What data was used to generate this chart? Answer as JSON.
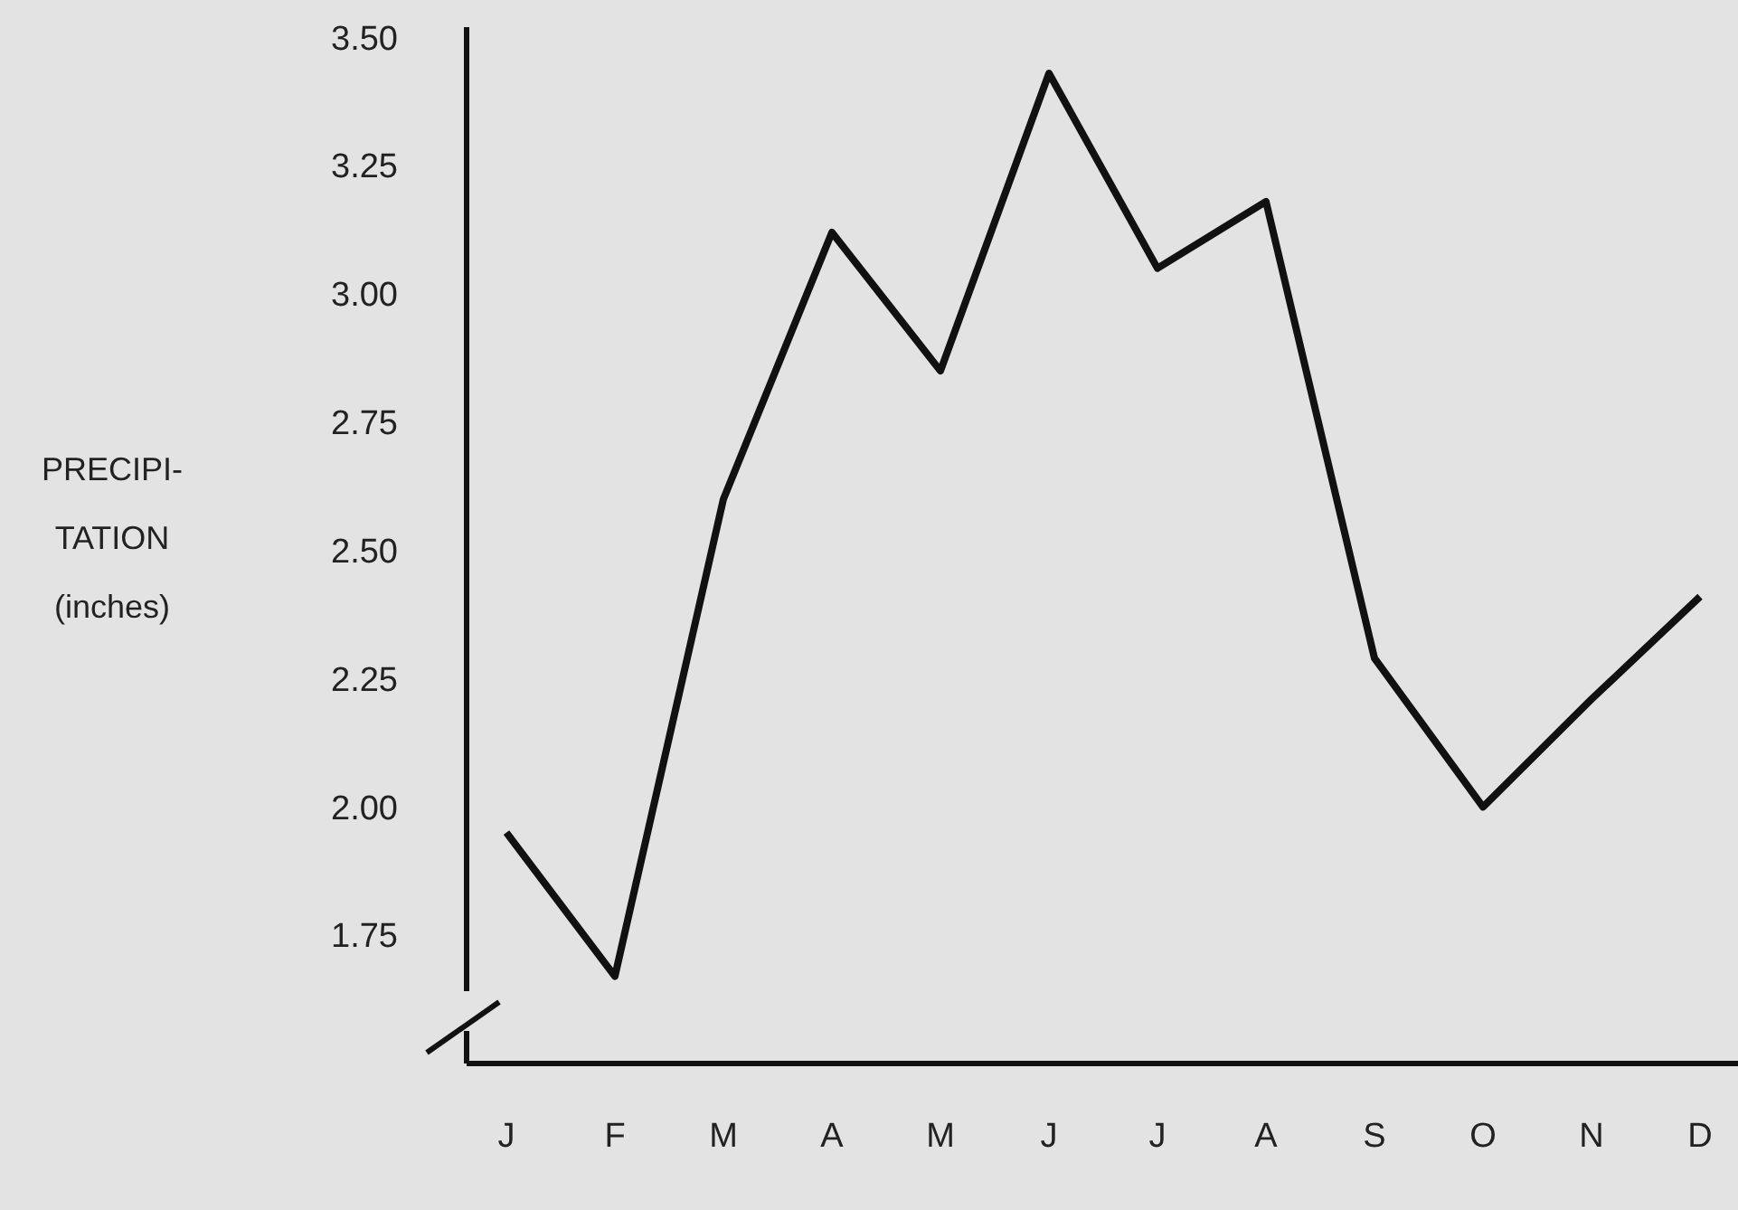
{
  "chart_data": {
    "type": "line",
    "ylabel": "PRECIPI-\nTATION\n(inches)",
    "categories": [
      "J",
      "F",
      "M",
      "A",
      "M",
      "J",
      "J",
      "A",
      "S",
      "O",
      "N",
      "D"
    ],
    "values": [
      1.95,
      1.67,
      2.6,
      3.12,
      2.85,
      3.43,
      3.05,
      3.18,
      2.29,
      2.0,
      2.21,
      2.41
    ],
    "color": "#111111",
    "ylim": [
      1.5,
      3.52
    ],
    "yticks": [
      {
        "value": 1.75,
        "label": "1.75"
      },
      {
        "value": 2,
        "label": "2.00"
      },
      {
        "value": 2.25,
        "label": "2.25"
      },
      {
        "value": 2.5,
        "label": "2.50"
      },
      {
        "value": 2.75,
        "label": "2.75"
      },
      {
        "value": 3,
        "label": "3.00"
      },
      {
        "value": 3.25,
        "label": "3.25"
      },
      {
        "value": 3.5,
        "label": "3.50"
      }
    ],
    "grid": false,
    "marker": "none",
    "line_style": "solid"
  }
}
